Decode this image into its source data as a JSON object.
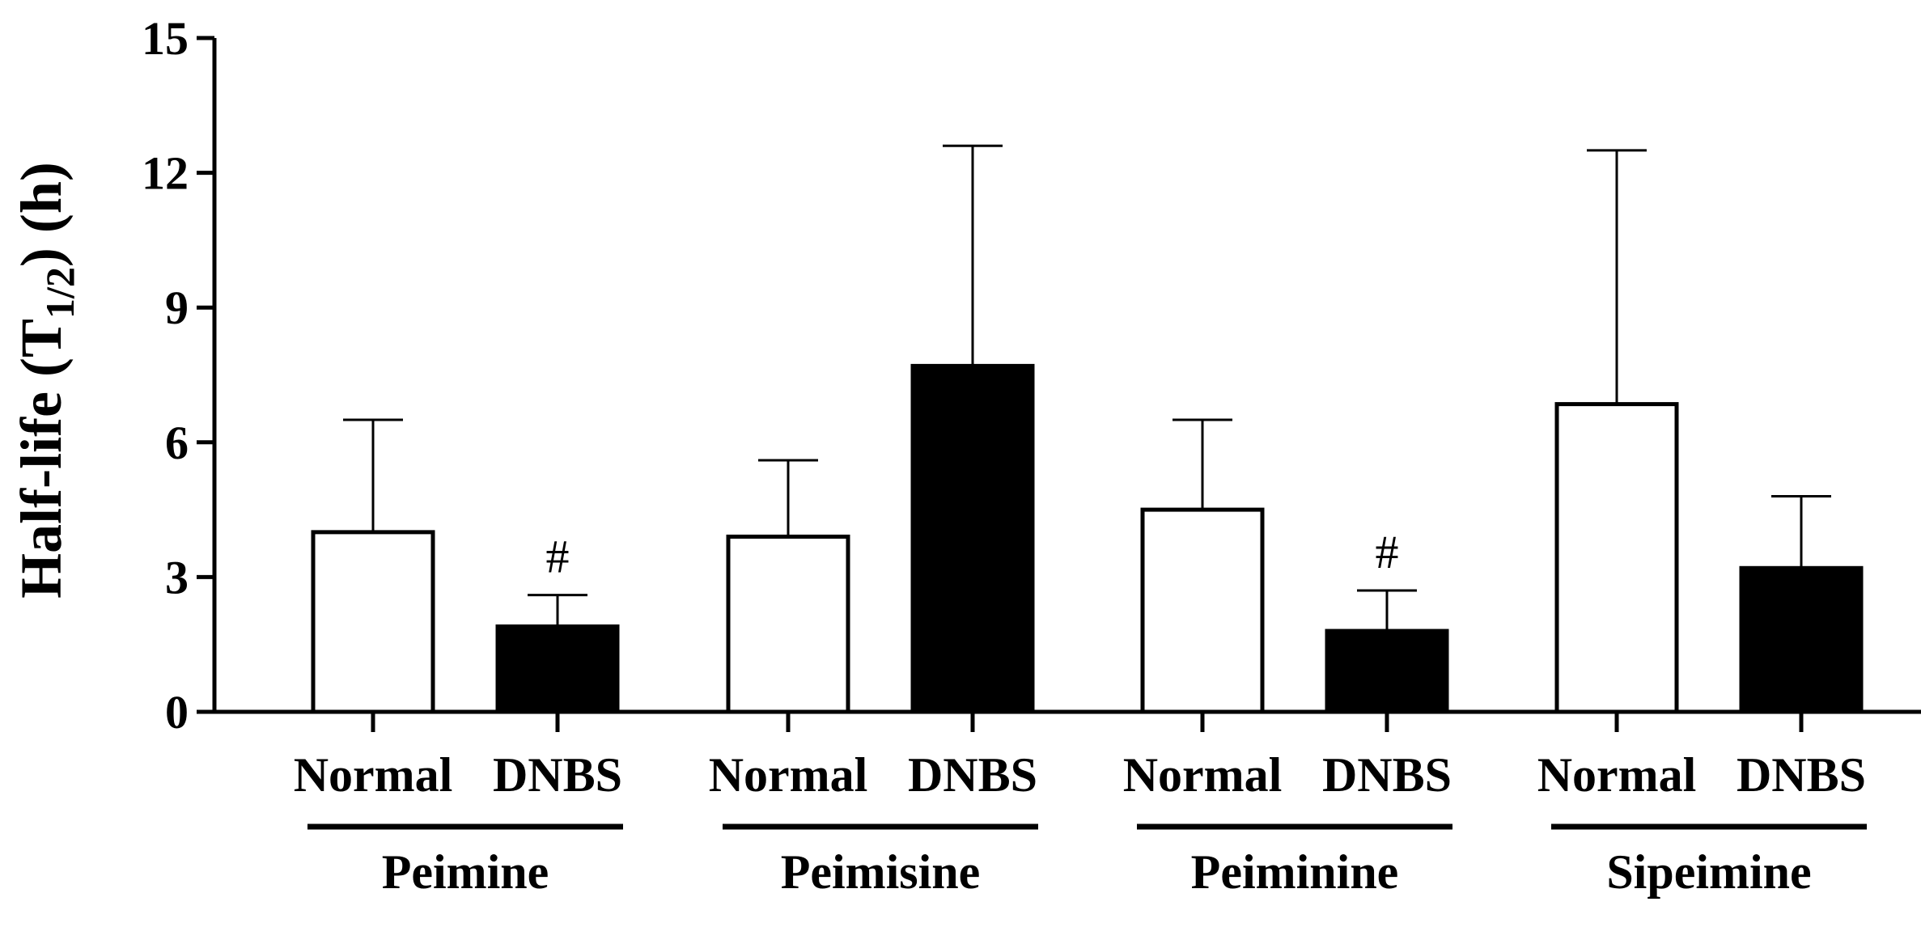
{
  "chart_data": {
    "type": "bar",
    "title": "",
    "xlabel": "",
    "ylabel": {
      "prefix": "Half-life (T",
      "subscript": "1/2",
      "suffix": ") (h)"
    },
    "ylim": [
      0,
      15
    ],
    "yticks": [
      "0",
      "3",
      "6",
      "9",
      "12",
      "15"
    ],
    "grid": false,
    "legend": "none",
    "groups": [
      "Peimine",
      "Peimisine",
      "Peiminine",
      "Sipeimine"
    ],
    "conditions": [
      "Normal",
      "DNBS"
    ],
    "series": [
      {
        "name": "Normal",
        "fill": "#ffffff",
        "values": [
          4.0,
          3.9,
          4.5,
          6.85
        ],
        "error_upper": [
          6.5,
          5.6,
          6.5,
          12.5
        ]
      },
      {
        "name": "DNBS",
        "fill": "#000000",
        "values": [
          1.9,
          7.7,
          1.8,
          3.2
        ],
        "error_upper": [
          2.6,
          12.6,
          2.7,
          4.8
        ]
      }
    ],
    "annotations": [
      {
        "group": "Peimine",
        "series": "DNBS",
        "text": "#"
      },
      {
        "group": "Peiminine",
        "series": "DNBS",
        "text": "#"
      }
    ]
  }
}
